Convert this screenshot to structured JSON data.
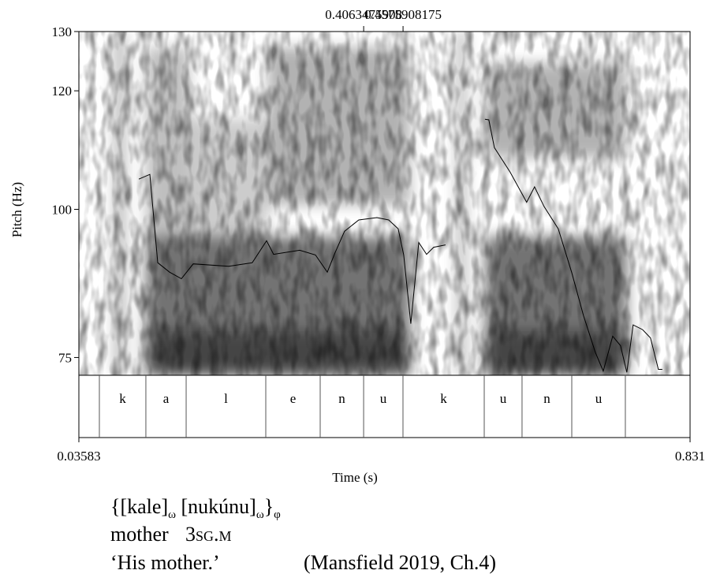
{
  "chart_data": {
    "type": "line",
    "xlabel": "Time (s)",
    "ylabel": "Pitch (Hz)",
    "xlim": [
      0.03583,
      0.831
    ],
    "xticks": [
      0.03583,
      0.831
    ],
    "top_xticks": [
      0.4063475908,
      0.4575908175
    ],
    "ylim": [
      72,
      130
    ],
    "yticks": [
      75,
      100,
      120,
      130
    ],
    "color": "#000000",
    "x": [
      0.1138,
      0.1282,
      0.1384,
      0.1538,
      0.1692,
      0.1846,
      0.2308,
      0.2615,
      0.28,
      0.2892,
      0.3231,
      0.3436,
      0.359,
      0.3692,
      0.3815,
      0.4,
      0.4236,
      0.439,
      0.4513,
      0.4585,
      0.4677,
      0.478,
      0.4882,
      0.4974,
      0.5128,
      null,
      0.5641,
      0.5692,
      0.5764,
      0.5969,
      0.6184,
      0.6287,
      0.641,
      0.6595,
      0.6769,
      0.6923,
      0.7077,
      0.718,
      0.7303,
      0.7405,
      0.7487,
      0.7569,
      0.7692,
      0.7795,
      0.7898,
      0.7949
    ],
    "values": [
      105.1,
      105.9,
      91.0,
      89.4,
      88.3,
      90.8,
      90.4,
      91.0,
      94.7,
      92.4,
      93.1,
      92.3,
      89.4,
      92.7,
      96.3,
      98.2,
      98.6,
      98.2,
      96.7,
      92.3,
      80.7,
      94.4,
      92.4,
      93.6,
      94.0,
      null,
      115.2,
      115.1,
      110.4,
      106.3,
      101.2,
      103.8,
      100.5,
      96.7,
      89.4,
      82.1,
      75.9,
      72.7,
      78.6,
      77.0,
      72.5,
      80.5,
      79.7,
      78.3,
      73.0,
      73.0
    ],
    "tier": {
      "boundaries": [
        0.0625,
        0.123,
        0.1754,
        0.279,
        0.3498,
        0.4063,
        0.4575,
        0.5632,
        0.6124,
        0.6771,
        0.7468
      ],
      "labels": [
        null,
        "k",
        "a",
        "l",
        "e",
        "n",
        "u",
        "k",
        "u",
        "n",
        "u",
        null
      ]
    }
  },
  "caption": {
    "line1": [
      "{[kale]",
      "ω",
      " [nukúnu]",
      "ω",
      "}",
      "φ"
    ],
    "line2": [
      "mother",
      "3sg.m"
    ],
    "line3": [
      "‘His mother.’",
      "(Mansfield 2019, Ch.4)"
    ]
  }
}
